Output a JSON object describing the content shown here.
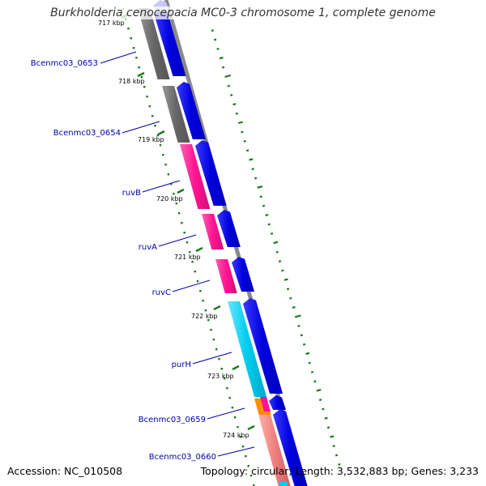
{
  "title": "Burkholderia cenocepacia MC0-3 chromosome 1, complete genome",
  "footer": {
    "accession": "Accession: NC_010508",
    "summary": "Topology: circular; Length: 3,532,883 bp; Genes: 3,233"
  },
  "colors": {
    "backbone": "#8a8a8a",
    "forward_cds": "#0000ee",
    "tick": "#1a7a1a",
    "label": "#0000aa",
    "gc_skew": "#1a7a1a"
  },
  "ticks": [
    "717 kbp",
    "718 kbp",
    "719 kbp",
    "720 kbp",
    "721 kbp",
    "722 kbp",
    "723 kbp",
    "724 kbp"
  ],
  "genes": [
    {
      "name": "Bcenmc03_0653",
      "color": "#777777"
    },
    {
      "name": "Bcenmc03_0654",
      "color": "#777777"
    },
    {
      "name": "ruvB",
      "color": "#ff1493"
    },
    {
      "name": "ruvA",
      "color": "#ff1493"
    },
    {
      "name": "ruvC",
      "color": "#ff1493"
    },
    {
      "name": "purH",
      "color": "#00ccee"
    },
    {
      "name": "Bcenmc03_0659",
      "color": "#ff8c00"
    },
    {
      "name": "Bcenmc03_0660",
      "color": "#f08080"
    }
  ]
}
